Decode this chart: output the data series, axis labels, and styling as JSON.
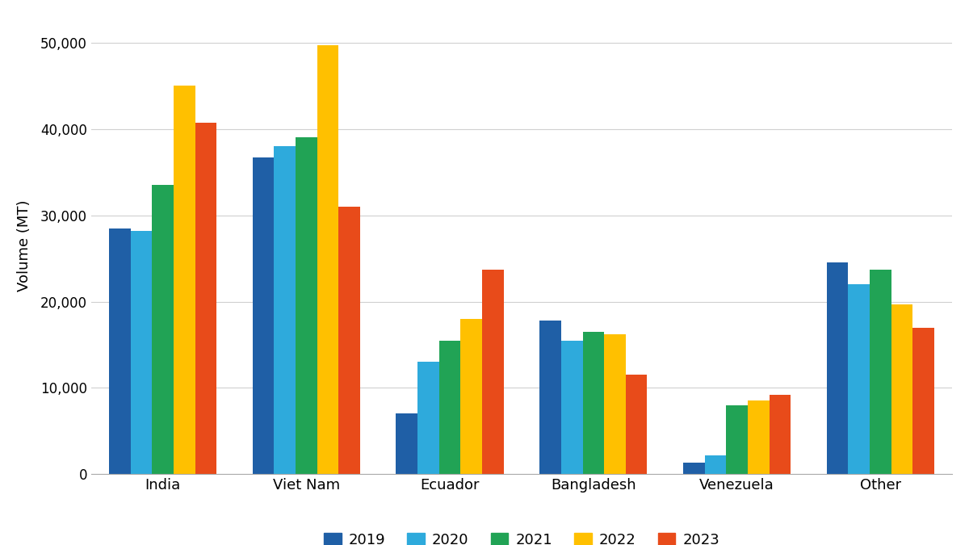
{
  "categories": [
    "India",
    "Viet Nam",
    "Ecuador",
    "Bangladesh",
    "Venezuela",
    "Other"
  ],
  "years": [
    "2019",
    "2020",
    "2021",
    "2022",
    "2023"
  ],
  "values": {
    "India": [
      28500,
      28200,
      33500,
      45000,
      40700
    ],
    "Viet Nam": [
      36700,
      38000,
      39000,
      49700,
      31000
    ],
    "Ecuador": [
      7000,
      13000,
      15500,
      18000,
      23700
    ],
    "Bangladesh": [
      17800,
      15500,
      16500,
      16200,
      11500
    ],
    "Venezuela": [
      1300,
      2200,
      8000,
      8500,
      9200
    ],
    "Other": [
      24500,
      22000,
      23700,
      19700,
      17000
    ]
  },
  "colors": [
    "#1f5fa6",
    "#2eaadc",
    "#21a355",
    "#ffc000",
    "#e84b1a"
  ],
  "ylabel": "Volume (MT)",
  "ylim": [
    0,
    53000
  ],
  "yticks": [
    0,
    10000,
    20000,
    30000,
    40000,
    50000
  ],
  "legend_labels": [
    "2019",
    "2020",
    "2021",
    "2022",
    "2023"
  ],
  "background_color": "#ffffff",
  "grid_color": "#d0d0d0"
}
